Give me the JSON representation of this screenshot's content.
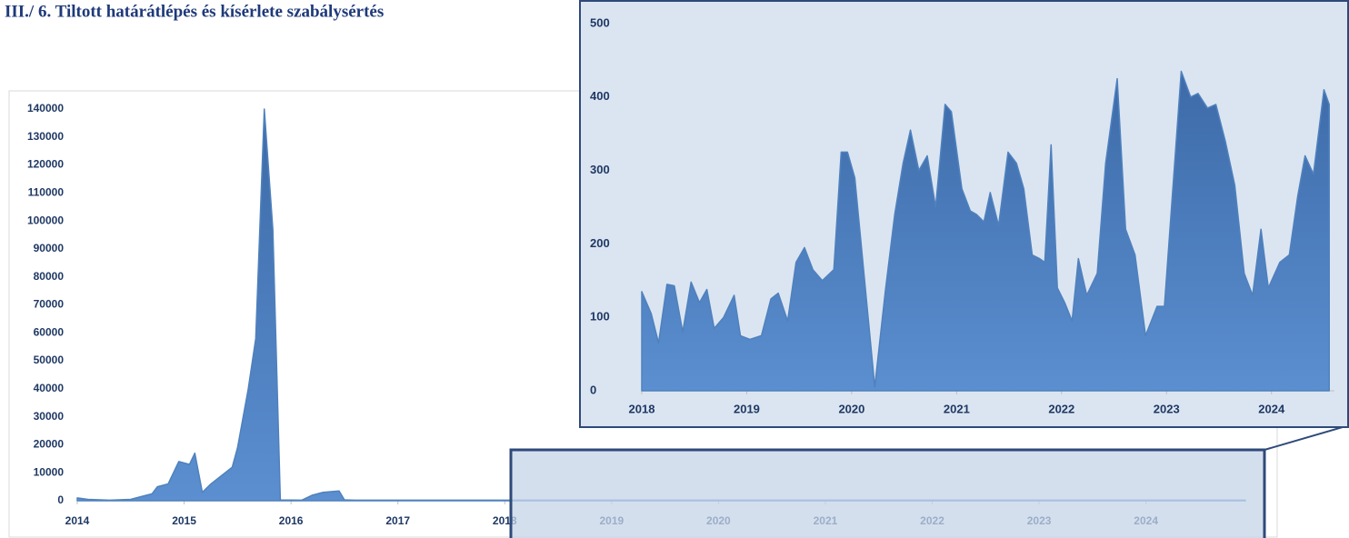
{
  "title": "III./ 6. Tiltott határátlépés és kísérlete szabálysértés",
  "chart_data": [
    {
      "type": "area",
      "x": [
        2014.0,
        2014.1,
        2014.3,
        2014.5,
        2014.6,
        2014.7,
        2014.75,
        2014.85,
        2014.95,
        2015.05,
        2015.1,
        2015.17,
        2015.25,
        2015.35,
        2015.45,
        2015.5,
        2015.6,
        2015.67,
        2015.75,
        2015.83,
        2015.9,
        2016.1,
        2016.2,
        2016.3,
        2016.45,
        2016.5,
        2016.6,
        2024.93
      ],
      "series": [
        {
          "color": "#4f81bd",
          "values": [
            1000,
            500,
            200,
            500,
            1500,
            2500,
            5000,
            6000,
            14000,
            13000,
            17000,
            3000,
            6000,
            9000,
            12000,
            19000,
            40000,
            58000,
            140000,
            97000,
            300,
            200,
            2000,
            3000,
            3500,
            300,
            200,
            200
          ]
        }
      ],
      "xlim": [
        2014,
        2024.93
      ],
      "xticks": [
        2014,
        2015,
        2016,
        2017,
        2018,
        2019,
        2020,
        2021,
        2022,
        2023,
        2024
      ],
      "ylim": [
        0,
        140000
      ],
      "yticks": [
        0,
        10000,
        20000,
        30000,
        40000,
        50000,
        60000,
        70000,
        80000,
        90000,
        100000,
        110000,
        120000,
        130000,
        140000
      ]
    },
    {
      "type": "area",
      "x": [
        2018.0,
        2018.09,
        2018.16,
        2018.24,
        2018.31,
        2018.39,
        2018.47,
        2018.55,
        2018.62,
        2018.69,
        2018.78,
        2018.88,
        2018.94,
        2019.03,
        2019.14,
        2019.23,
        2019.3,
        2019.39,
        2019.47,
        2019.55,
        2019.63,
        2019.72,
        2019.83,
        2019.9,
        2019.96,
        2020.03,
        2020.22,
        2020.32,
        2020.41,
        2020.49,
        2020.56,
        2020.64,
        2020.72,
        2020.8,
        2020.89,
        2020.95,
        2021.05,
        2021.13,
        2021.19,
        2021.26,
        2021.32,
        2021.4,
        2021.49,
        2021.57,
        2021.64,
        2021.72,
        2021.79,
        2021.84,
        2021.9,
        2021.96,
        2022.03,
        2022.1,
        2022.16,
        2022.24,
        2022.34,
        2022.42,
        2022.53,
        2022.61,
        2022.7,
        2022.8,
        2022.91,
        2022.98,
        2023.14,
        2023.23,
        2023.3,
        2023.39,
        2023.47,
        2023.56,
        2023.65,
        2023.74,
        2023.82,
        2023.9,
        2023.97,
        2024.08,
        2024.17,
        2024.25,
        2024.32,
        2024.4,
        2024.5,
        2024.55
      ],
      "series": [
        {
          "color": "#4f81bd",
          "values": [
            135,
            105,
            65,
            145,
            143,
            80,
            148,
            120,
            138,
            85,
            100,
            130,
            75,
            70,
            75,
            125,
            133,
            95,
            175,
            195,
            165,
            150,
            165,
            325,
            325,
            290,
            5,
            135,
            240,
            310,
            355,
            300,
            320,
            250,
            390,
            380,
            275,
            245,
            240,
            230,
            270,
            225,
            325,
            310,
            275,
            185,
            180,
            175,
            335,
            140,
            120,
            95,
            180,
            130,
            160,
            310,
            425,
            220,
            185,
            75,
            115,
            115,
            435,
            400,
            405,
            385,
            390,
            340,
            280,
            160,
            130,
            220,
            140,
            175,
            185,
            265,
            320,
            295,
            410,
            390
          ]
        }
      ],
      "xlim": [
        2018,
        2024.6
      ],
      "xticks": [
        2018,
        2019,
        2020,
        2021,
        2022,
        2023,
        2024
      ],
      "ylim": [
        0,
        500
      ],
      "yticks": [
        0,
        100,
        200,
        300,
        400,
        500
      ]
    }
  ]
}
